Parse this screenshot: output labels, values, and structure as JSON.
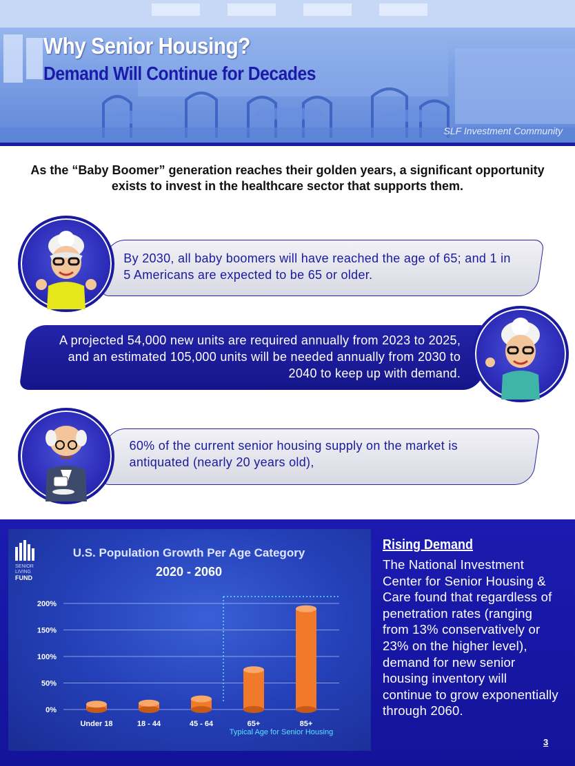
{
  "header": {
    "title": "Why Senior Housing?",
    "subtitle": "Demand Will Continue for Decades",
    "tag": "SLF Investment Community"
  },
  "intro": "As the “Baby Boomer” generation reaches their golden years, a significant opportunity exists to invest in the healthcare sector that supports them.",
  "facts": [
    {
      "text": "By 2030, all baby boomers will have reached the age of 65; and 1 in 5 Americans are expected to be 65 or older."
    },
    {
      "text": "A projected 54,000 new units are required annually from 2023 to 2025, and an estimated 105,000 units will be needed annually from 2030 to 2040 to keep up with demand."
    },
    {
      "text": "60% of the current senior housing supply on the market is antiquated (nearly 20 years old),"
    }
  ],
  "chart_data": {
    "type": "bar",
    "title": "U.S. Population Growth Per Age Category",
    "subtitle": "2020 - 2060",
    "logo_text": [
      "SENIOR",
      "LIVING",
      "FUND"
    ],
    "categories": [
      "Under 18",
      "18 - 44",
      "45 - 64",
      "65+",
      "85+"
    ],
    "values": [
      10,
      12,
      20,
      75,
      190
    ],
    "yticks": [
      "0%",
      "50%",
      "100%",
      "150%",
      "200%"
    ],
    "ylim": [
      0,
      200
    ],
    "annotation": "Typical Age for Senior Housing",
    "bar_color": "#f07a2a",
    "grid": true
  },
  "side": {
    "title": "Rising Demand",
    "text": "The National Investment Center for Senior Housing & Care found that regardless of penetration rates (ranging from 13% conservatively or 23% on the higher level), demand for new senior housing inventory will continue to grow exponentially through 2060."
  },
  "page_number": "3"
}
